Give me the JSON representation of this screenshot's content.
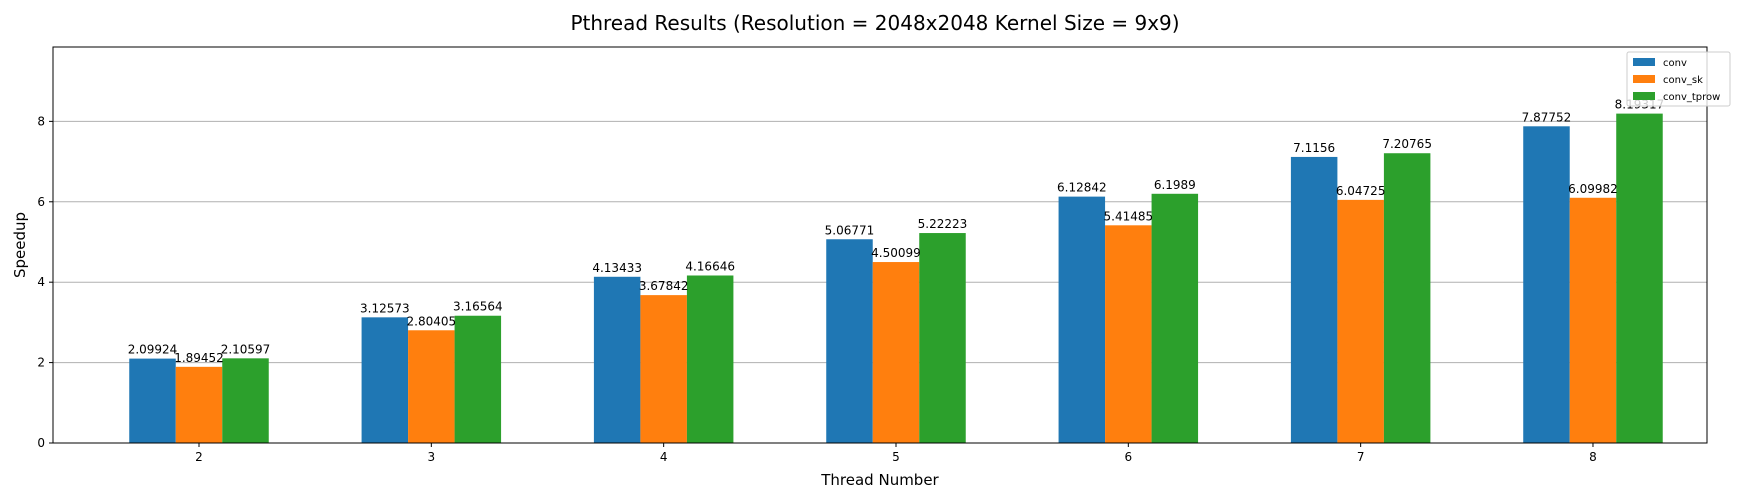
{
  "chart_data": {
    "type": "bar",
    "title": "Pthread Results (Resolution = 2048x2048 Kernel Size = 9x9)",
    "xlabel": "Thread Number",
    "ylabel": "Speedup",
    "categories": [
      "2",
      "3",
      "4",
      "5",
      "6",
      "7",
      "8"
    ],
    "ylim": [
      0,
      9.85
    ],
    "yticks": [
      0,
      2,
      4,
      6,
      8
    ],
    "grid": "horizontal",
    "legend_position": "top-right",
    "series": [
      {
        "name": "conv",
        "color": "#1f77b4",
        "values": [
          2.09924,
          3.12573,
          4.13433,
          5.06771,
          6.12842,
          7.1156,
          7.87752
        ],
        "labels": [
          "2.09924",
          "3.12573",
          "4.13433",
          "5.06771",
          "6.12842",
          "7.1156",
          "7.87752"
        ]
      },
      {
        "name": "conv_sk",
        "color": "#ff7f0e",
        "values": [
          1.89452,
          2.80405,
          3.67842,
          4.50099,
          5.41485,
          6.04725,
          6.09982
        ],
        "labels": [
          "1.89452",
          "2.80405",
          "3.67842",
          "4.50099",
          "5.41485",
          "6.04725",
          "6.09982"
        ]
      },
      {
        "name": "conv_tprow",
        "color": "#2ca02c",
        "values": [
          2.10597,
          3.16564,
          4.16646,
          5.22223,
          6.1989,
          7.20765,
          8.19317
        ],
        "labels": [
          "2.10597",
          "3.16564",
          "4.16646",
          "5.22223",
          "6.1989",
          "7.20765",
          "8.19317"
        ]
      }
    ]
  }
}
